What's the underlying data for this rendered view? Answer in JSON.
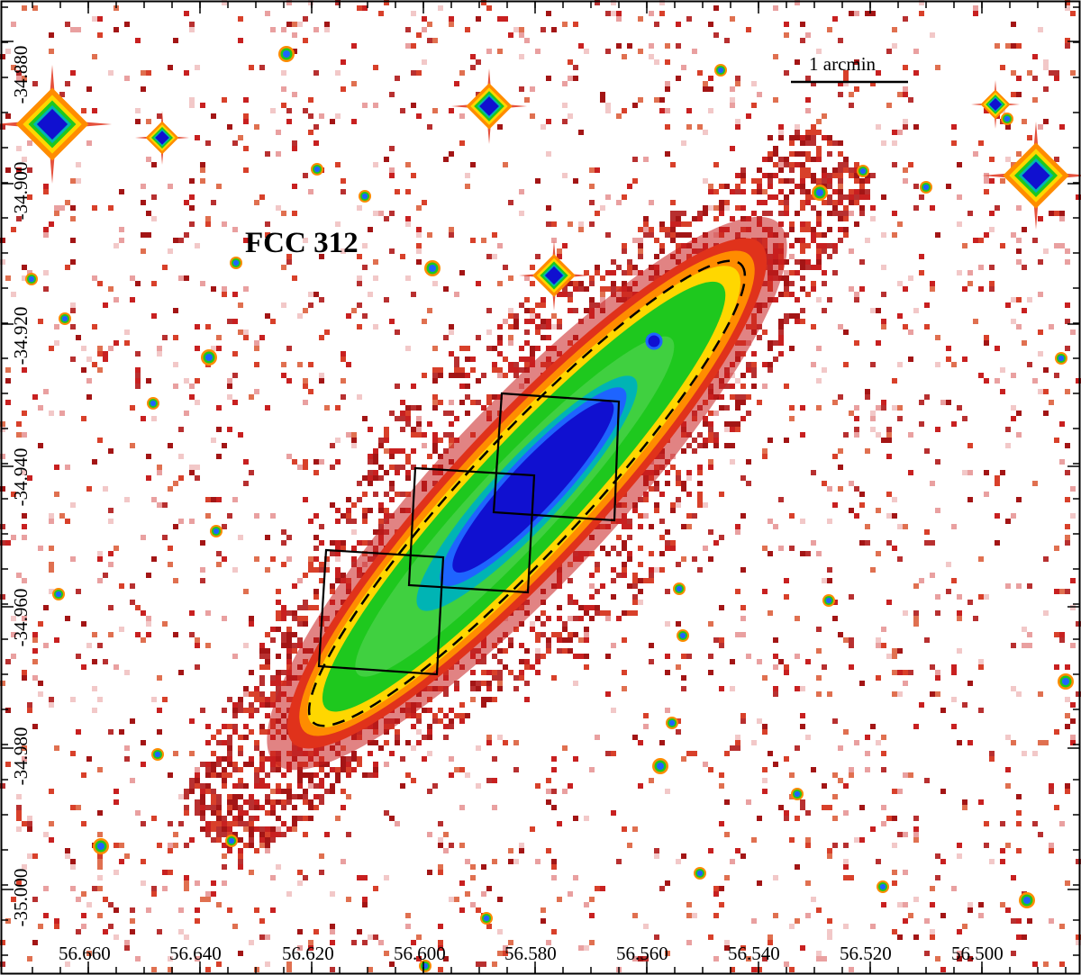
{
  "image": {
    "object_label": "FCC 312",
    "scale_bar_label": "1 arcmin",
    "x_axis_ticks": [
      "56.660",
      "56.640",
      "56.620",
      "56.600",
      "56.580",
      "56.560",
      "56.540",
      "56.520",
      "56.500"
    ],
    "y_axis_ticks": [
      "-34.880",
      "-34.900",
      "-34.920",
      "-34.940",
      "-34.960",
      "-34.980",
      "-35.000"
    ],
    "colormap": [
      "#a31515",
      "#e0321b",
      "#ff8c00",
      "#ffd700",
      "#9acd32",
      "#1ec81e",
      "#00b4b4",
      "#1e64ff",
      "#1010d0"
    ],
    "annotation_colors": {
      "frame": "#000000",
      "isophote_dash": "#000000",
      "pointings": "#000000"
    }
  }
}
